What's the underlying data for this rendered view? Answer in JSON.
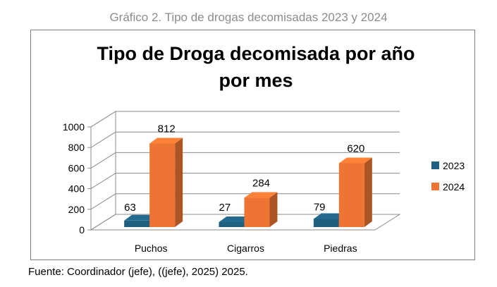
{
  "caption": "Gráfico 2. Tipo de drogas decomisadas 2023 y 2024",
  "source": "Fuente: Coordinador (jefe), ((jefe), 2025) 2025.",
  "chart_data": {
    "type": "bar",
    "title_lines": [
      "Tipo de Droga decomisada por año",
      "por mes"
    ],
    "categories": [
      "Puchos",
      "Cigarros",
      "Piedras"
    ],
    "series": [
      {
        "name": "2023",
        "values": [
          63,
          27,
          79
        ],
        "color": "#1f5f7f"
      },
      {
        "name": "2024",
        "values": [
          812,
          284,
          620
        ],
        "color": "#ed7432"
      }
    ],
    "yticks": [
      "0",
      "200",
      "400",
      "600",
      "800",
      "1000"
    ],
    "ylim": [
      0,
      1000
    ],
    "grid": true,
    "legend": "right"
  }
}
